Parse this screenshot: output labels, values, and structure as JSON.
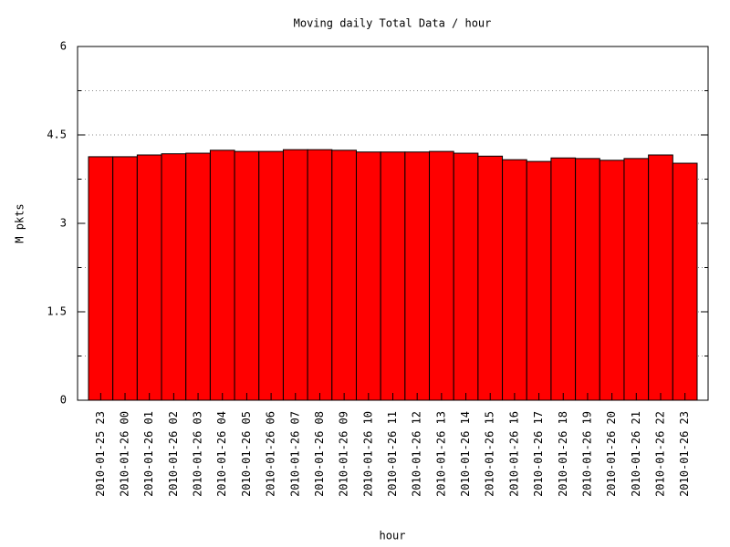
{
  "chart_data": {
    "type": "bar",
    "title": "Moving daily Total Data / hour",
    "x_label": "hour",
    "y_label": "M pkts",
    "categories": [
      "2010-01-25 23",
      "2010-01-26 00",
      "2010-01-26 01",
      "2010-01-26 02",
      "2010-01-26 03",
      "2010-01-26 04",
      "2010-01-26 05",
      "2010-01-26 06",
      "2010-01-26 07",
      "2010-01-26 08",
      "2010-01-26 09",
      "2010-01-26 10",
      "2010-01-26 11",
      "2010-01-26 12",
      "2010-01-26 13",
      "2010-01-26 14",
      "2010-01-26 15",
      "2010-01-26 16",
      "2010-01-26 17",
      "2010-01-26 18",
      "2010-01-26 19",
      "2010-01-26 20",
      "2010-01-26 21",
      "2010-01-26 22",
      "2010-01-26 23"
    ],
    "values": [
      4.13,
      4.13,
      4.16,
      4.18,
      4.19,
      4.24,
      4.22,
      4.22,
      4.25,
      4.25,
      4.24,
      4.21,
      4.21,
      4.21,
      4.22,
      4.19,
      4.14,
      4.08,
      4.05,
      4.11,
      4.1,
      4.07,
      4.1,
      4.16,
      4.02
    ],
    "color": "#ff0000",
    "ylim": [
      0,
      6
    ],
    "yticks": [
      0,
      1.5,
      3,
      4.5,
      6
    ],
    "minor_yticks": [
      0.75,
      2.25,
      3.75,
      5.25
    ],
    "grid": true
  }
}
